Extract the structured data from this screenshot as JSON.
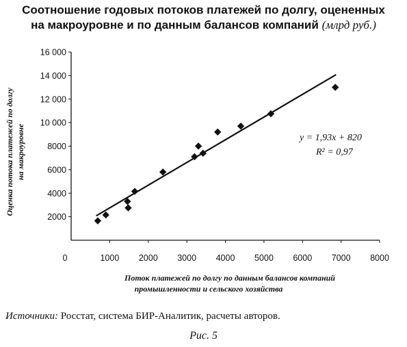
{
  "title": {
    "line1": "Соотношение годовых потоков платежей по долгу, оцененных",
    "line2": "на макроуровне и по данным балансов компаний",
    "unit": "(млрд руб.)"
  },
  "chart_data": {
    "type": "scatter",
    "x_ticks": [
      "0",
      "1000",
      "2000",
      "3000",
      "4000",
      "5000",
      "6000",
      "7000",
      "8000"
    ],
    "y_ticks": [
      "2000",
      "4000",
      "6000",
      "8000",
      "10 000",
      "12 000",
      "14 000",
      "16 000"
    ],
    "xlim": [
      0,
      8000
    ],
    "ylim": [
      0,
      16000
    ],
    "xlabel_line1": "Поток платежей по долгу по данным балансов компаний",
    "xlabel_line2": "промышленности и сельского хозяйства",
    "ylabel_line1": "Оценка потока платежей по долгу",
    "ylabel_line2": "на макроуровне",
    "points": [
      {
        "x": 690,
        "y": 1650
      },
      {
        "x": 900,
        "y": 2150
      },
      {
        "x": 1460,
        "y": 3300
      },
      {
        "x": 1480,
        "y": 2750
      },
      {
        "x": 1650,
        "y": 4150
      },
      {
        "x": 2380,
        "y": 5800
      },
      {
        "x": 3200,
        "y": 7100
      },
      {
        "x": 3300,
        "y": 8000
      },
      {
        "x": 3420,
        "y": 7400
      },
      {
        "x": 3800,
        "y": 9200
      },
      {
        "x": 4400,
        "y": 9700
      },
      {
        "x": 5180,
        "y": 10750
      },
      {
        "x": 6850,
        "y": 13000
      }
    ],
    "trendline": {
      "slope": 1.93,
      "intercept": 820,
      "x_start": 650,
      "x_end": 6870
    },
    "equation": "y = 1,93x + 820",
    "r_squared": "R² = 0,97",
    "grid": false
  },
  "source": {
    "label": "Источники:",
    "text": " Росстат, система БИР-Аналитик, расчеты авторов."
  },
  "caption": "Рис. 5"
}
